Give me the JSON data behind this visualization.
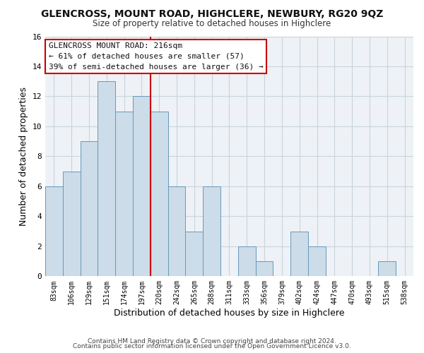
{
  "title": "GLENCROSS, MOUNT ROAD, HIGHCLERE, NEWBURY, RG20 9QZ",
  "subtitle": "Size of property relative to detached houses in Highclere",
  "xlabel": "Distribution of detached houses by size in Highclere",
  "ylabel": "Number of detached properties",
  "footer_line1": "Contains HM Land Registry data © Crown copyright and database right 2024.",
  "footer_line2": "Contains public sector information licensed under the Open Government Licence v3.0.",
  "bar_labels": [
    "83sqm",
    "106sqm",
    "129sqm",
    "151sqm",
    "174sqm",
    "197sqm",
    "220sqm",
    "242sqm",
    "265sqm",
    "288sqm",
    "311sqm",
    "333sqm",
    "356sqm",
    "379sqm",
    "402sqm",
    "424sqm",
    "447sqm",
    "470sqm",
    "493sqm",
    "515sqm",
    "538sqm"
  ],
  "bar_heights": [
    6,
    7,
    9,
    13,
    11,
    12,
    11,
    6,
    3,
    6,
    0,
    2,
    1,
    0,
    3,
    2,
    0,
    0,
    0,
    1,
    0
  ],
  "bar_color": "#ccdce8",
  "bar_edge_color": "#6699bb",
  "vline_color": "#cc0000",
  "vline_x": 5.5,
  "ylim": [
    0,
    16
  ],
  "yticks": [
    0,
    2,
    4,
    6,
    8,
    10,
    12,
    14,
    16
  ],
  "annotation_title": "GLENCROSS MOUNT ROAD: 216sqm",
  "annotation_line1": "← 61% of detached houses are smaller (57)",
  "annotation_line2": "39% of semi-detached houses are larger (36) →",
  "annotation_box_facecolor": "#ffffff",
  "annotation_box_edgecolor": "#cc0000",
  "grid_color": "#c8d4dc",
  "background_color": "#ffffff",
  "plot_bg_color": "#eef2f6"
}
